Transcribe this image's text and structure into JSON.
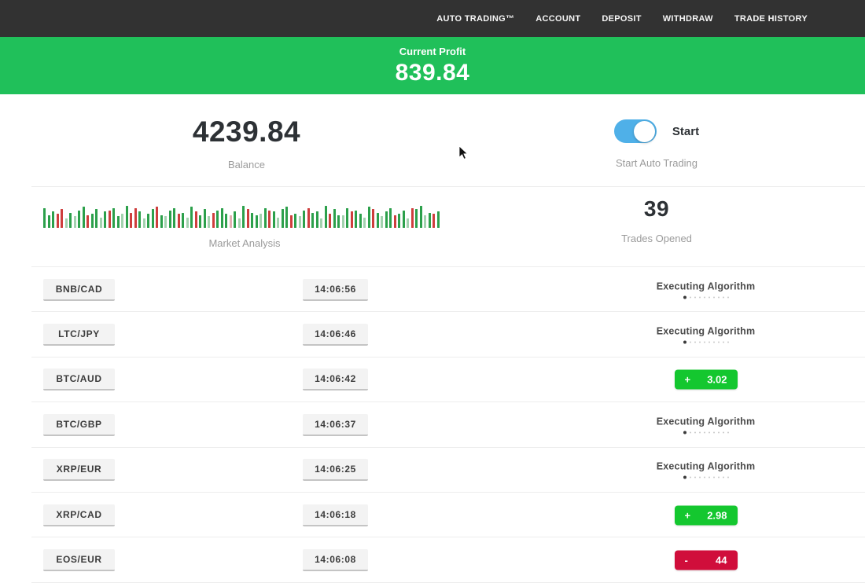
{
  "nav": {
    "items": [
      "AUTO TRADING™",
      "ACCOUNT",
      "DEPOSIT",
      "WITHDRAW",
      "TRADE HISTORY"
    ]
  },
  "banner": {
    "label": "Current Profit",
    "value": "839.84"
  },
  "stats": {
    "balance": {
      "value": "4239.84",
      "label": "Balance"
    },
    "auto_trading": {
      "toggle_label": "Start",
      "label": "Start Auto Trading",
      "toggle_on": true
    },
    "market_analysis": {
      "label": "Market Analysis",
      "bars": [
        [
          "g",
          85
        ],
        [
          "g",
          55
        ],
        [
          "g",
          70
        ],
        [
          "r",
          60
        ],
        [
          "r",
          80
        ],
        [
          "G",
          40
        ],
        [
          "g",
          65
        ],
        [
          "G",
          50
        ],
        [
          "g",
          75
        ],
        [
          "g",
          90
        ],
        [
          "r",
          55
        ],
        [
          "g",
          60
        ],
        [
          "g",
          80
        ],
        [
          "G",
          45
        ],
        [
          "g",
          70
        ],
        [
          "r",
          75
        ],
        [
          "g",
          85
        ],
        [
          "g",
          50
        ],
        [
          "G",
          60
        ],
        [
          "g",
          95
        ],
        [
          "r",
          65
        ],
        [
          "r",
          85
        ],
        [
          "g",
          70
        ],
        [
          "G",
          40
        ],
        [
          "g",
          60
        ],
        [
          "g",
          80
        ],
        [
          "r",
          90
        ],
        [
          "g",
          55
        ],
        [
          "G",
          50
        ],
        [
          "g",
          75
        ],
        [
          "g",
          85
        ],
        [
          "r",
          60
        ],
        [
          "g",
          65
        ],
        [
          "G",
          45
        ],
        [
          "g",
          90
        ],
        [
          "r",
          70
        ],
        [
          "g",
          55
        ],
        [
          "g",
          80
        ],
        [
          "G",
          50
        ],
        [
          "r",
          65
        ],
        [
          "g",
          75
        ],
        [
          "g",
          85
        ],
        [
          "g",
          60
        ],
        [
          "R",
          55
        ],
        [
          "g",
          70
        ],
        [
          "G",
          40
        ],
        [
          "g",
          95
        ],
        [
          "r",
          80
        ],
        [
          "g",
          65
        ],
        [
          "g",
          55
        ],
        [
          "G",
          60
        ],
        [
          "g",
          85
        ],
        [
          "r",
          75
        ],
        [
          "g",
          70
        ],
        [
          "G",
          45
        ],
        [
          "g",
          80
        ],
        [
          "g",
          90
        ],
        [
          "r",
          55
        ],
        [
          "g",
          60
        ],
        [
          "G",
          50
        ],
        [
          "g",
          75
        ],
        [
          "r",
          85
        ],
        [
          "g",
          65
        ],
        [
          "g",
          70
        ],
        [
          "G",
          40
        ],
        [
          "g",
          95
        ],
        [
          "r",
          60
        ],
        [
          "g",
          80
        ],
        [
          "g",
          55
        ],
        [
          "G",
          55
        ],
        [
          "g",
          85
        ],
        [
          "r",
          70
        ],
        [
          "g",
          75
        ],
        [
          "g",
          60
        ],
        [
          "G",
          45
        ],
        [
          "g",
          90
        ],
        [
          "r",
          80
        ],
        [
          "g",
          65
        ],
        [
          "G",
          50
        ],
        [
          "g",
          70
        ],
        [
          "g",
          85
        ],
        [
          "r",
          55
        ],
        [
          "g",
          60
        ],
        [
          "g",
          75
        ],
        [
          "G",
          40
        ],
        [
          "r",
          85
        ],
        [
          "g",
          80
        ],
        [
          "g",
          95
        ],
        [
          "G",
          55
        ],
        [
          "g",
          65
        ],
        [
          "r",
          60
        ],
        [
          "g",
          70
        ]
      ]
    },
    "trades_opened": {
      "value": "39",
      "label": "Trades Opened"
    }
  },
  "trades": [
    {
      "pair": "BNB/CAD",
      "time": "14:06:56",
      "status": "executing",
      "status_label": "Executing Algorithm"
    },
    {
      "pair": "LTC/JPY",
      "time": "14:06:46",
      "status": "executing",
      "status_label": "Executing Algorithm"
    },
    {
      "pair": "BTC/AUD",
      "time": "14:06:42",
      "status": "profit",
      "sign": "+",
      "amount": "3.02"
    },
    {
      "pair": "BTC/GBP",
      "time": "14:06:37",
      "status": "executing",
      "status_label": "Executing Algorithm"
    },
    {
      "pair": "XRP/EUR",
      "time": "14:06:25",
      "status": "executing",
      "status_label": "Executing Algorithm"
    },
    {
      "pair": "XRP/CAD",
      "time": "14:06:18",
      "status": "profit",
      "sign": "+",
      "amount": "2.98"
    },
    {
      "pair": "EOS/EUR",
      "time": "14:06:08",
      "status": "loss",
      "sign": "-",
      "amount": "44"
    }
  ],
  "executing_dots_count": 10,
  "colors": {
    "nav_bg": "#323232",
    "banner_green": "#20c05a",
    "profit_green": "#14c72f",
    "loss_red": "#d00e3b",
    "toggle_blue": "#4fb0e8",
    "bar_green": "#2ca04b",
    "bar_red": "#ce3e3d",
    "bar_green_pale": "#a3d2af",
    "bar_red_pale": "#e3b0b3"
  }
}
